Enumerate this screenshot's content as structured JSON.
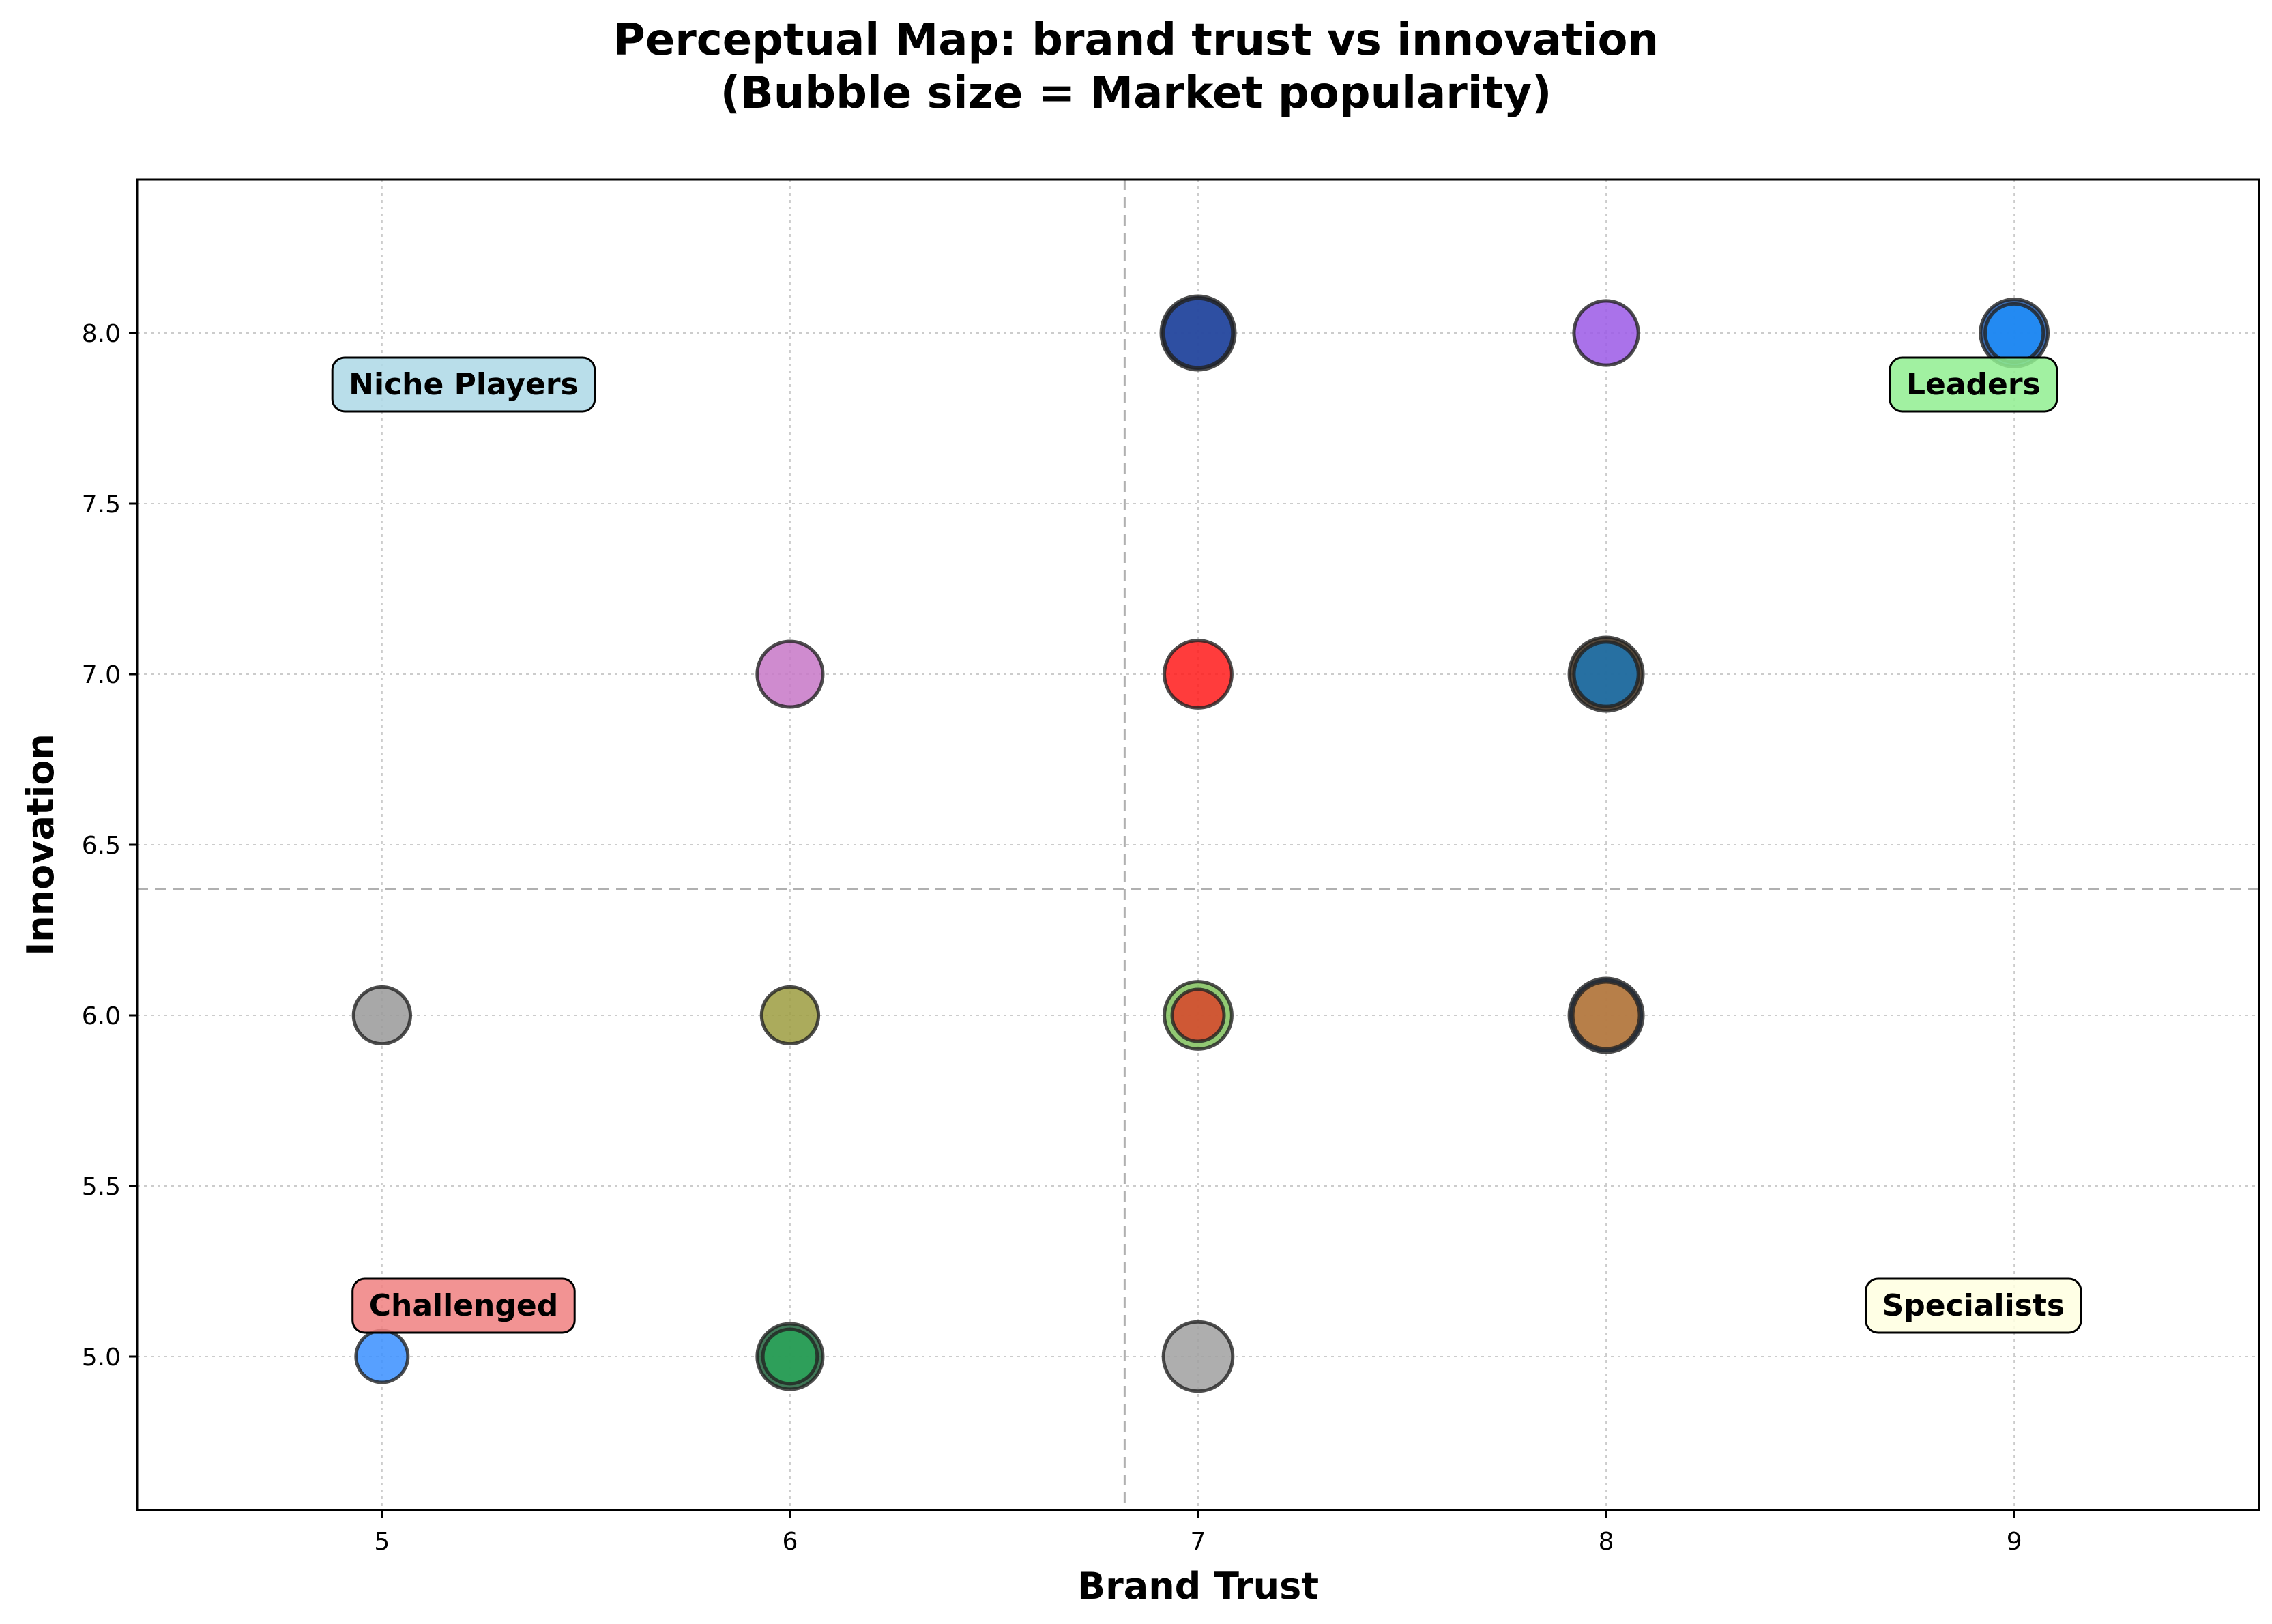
{
  "chart_data": {
    "type": "scatter",
    "title_lines": [
      "Perceptual Map: brand trust vs innovation",
      "(Bubble size = Market popularity)"
    ],
    "xlabel": "Brand Trust",
    "ylabel": "Innovation",
    "xlim": [
      4.4,
      9.6
    ],
    "ylim": [
      4.55,
      8.45
    ],
    "xticks": [
      5,
      6,
      7,
      8,
      9
    ],
    "yticks": [
      5.0,
      5.5,
      6.0,
      6.5,
      7.0,
      7.5,
      8.0
    ],
    "x_tick_labels": [
      "5",
      "6",
      "7",
      "8",
      "9"
    ],
    "y_tick_labels": [
      "5.0",
      "5.5",
      "6.0",
      "6.5",
      "7.0",
      "7.5",
      "8.0"
    ],
    "grid": true,
    "median_x": 6.82,
    "median_y": 6.37,
    "quadrant_labels": [
      {
        "text": "Niche Players",
        "x": 5.2,
        "y": 7.85,
        "color": "#add8e6"
      },
      {
        "text": "Leaders",
        "x": 8.9,
        "y": 7.85,
        "color": "#90ee90"
      },
      {
        "text": "Challenged",
        "x": 5.2,
        "y": 5.15,
        "color": "#f08080"
      },
      {
        "text": "Specialists",
        "x": 8.9,
        "y": 5.15,
        "color": "#ffffe0"
      }
    ],
    "points": [
      {
        "x": 7,
        "y": 8,
        "size": 95,
        "color": "#1f3f8a"
      },
      {
        "x": 7,
        "y": 8,
        "size": 88,
        "color": "#2b4ca3"
      },
      {
        "x": 8,
        "y": 8,
        "size": 80,
        "color": "#9b59e6"
      },
      {
        "x": 9,
        "y": 8,
        "size": 85,
        "color": "#1a4f9a"
      },
      {
        "x": 9,
        "y": 8,
        "size": 70,
        "color": "#1e90ff"
      },
      {
        "x": 6,
        "y": 7,
        "size": 82,
        "color": "#c777c7"
      },
      {
        "x": 7,
        "y": 7,
        "size": 85,
        "color": "#ff1a1a"
      },
      {
        "x": 8,
        "y": 7,
        "size": 95,
        "color": "#3a2a1a"
      },
      {
        "x": 8,
        "y": 7,
        "size": 80,
        "color": "#1f77b4"
      },
      {
        "x": 5,
        "y": 6,
        "size": 68,
        "color": "#999999"
      },
      {
        "x": 6,
        "y": 6,
        "size": 68,
        "color": "#9c9c40"
      },
      {
        "x": 7,
        "y": 6,
        "size": 85,
        "color": "#7fbf5a"
      },
      {
        "x": 7,
        "y": 6,
        "size": 60,
        "color": "#d9442a"
      },
      {
        "x": 8,
        "y": 6,
        "size": 95,
        "color": "#1f3f6a"
      },
      {
        "x": 8,
        "y": 6,
        "size": 84,
        "color": "#cd853f"
      },
      {
        "x": 5,
        "y": 5,
        "size": 60,
        "color": "#3a8fff"
      },
      {
        "x": 6,
        "y": 5,
        "size": 82,
        "color": "#1f5f3a"
      },
      {
        "x": 6,
        "y": 5,
        "size": 64,
        "color": "#2ca65a"
      },
      {
        "x": 7,
        "y": 5,
        "size": 88,
        "color": "#a0a0a0"
      }
    ]
  }
}
